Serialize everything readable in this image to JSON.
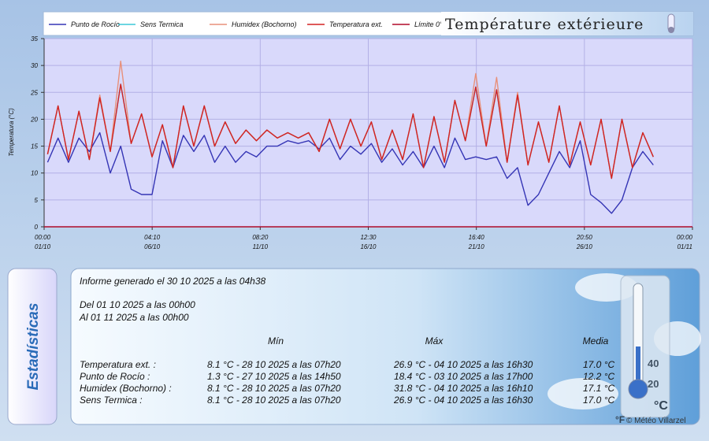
{
  "chart_data": {
    "type": "line",
    "title": "Température extérieure",
    "y_label": "Temperatura (°C)",
    "x": [
      4,
      16,
      28,
      40,
      52,
      64,
      76,
      88,
      100,
      112,
      124,
      136,
      148,
      160,
      172,
      184,
      196,
      208,
      220,
      232,
      244,
      256,
      268,
      280,
      292,
      304,
      316,
      328,
      340,
      352,
      364,
      376,
      388,
      400,
      412,
      424,
      436,
      448,
      460,
      472,
      484,
      496,
      508,
      520,
      532,
      544,
      556,
      568,
      580,
      592,
      604,
      616,
      628,
      640,
      652,
      664,
      676,
      688,
      700
    ],
    "xlim": [
      0,
      745
    ],
    "xticks": [
      {
        "value": 0,
        "label": "00:00",
        "date": "01/10"
      },
      {
        "value": 124.17,
        "label": "04:10",
        "date": "06/10"
      },
      {
        "value": 248.33,
        "label": "08:20",
        "date": "11/10"
      },
      {
        "value": 372.5,
        "label": "12:30",
        "date": "16/10"
      },
      {
        "value": 496.67,
        "label": "16:40",
        "date": "21/10"
      },
      {
        "value": 620.83,
        "label": "20:50",
        "date": "26/10"
      },
      {
        "value": 745,
        "label": "00:00",
        "date": "01/11"
      }
    ],
    "ylim": [
      0,
      35
    ],
    "yticks": [
      0,
      5,
      10,
      15,
      20,
      25,
      30,
      35
    ],
    "grid": true,
    "series": [
      {
        "name": "Punto de Rocío",
        "color": "#3535b5",
        "values": [
          12,
          16.5,
          12,
          16.5,
          14,
          17.5,
          10,
          15,
          7,
          6,
          6,
          16,
          11,
          17,
          14,
          17,
          12,
          15,
          12,
          14,
          13,
          15,
          15,
          16,
          15.5,
          16,
          14.5,
          16.5,
          12.5,
          15,
          13.5,
          15.5,
          12,
          14.5,
          11.5,
          14,
          11,
          15,
          11,
          16.5,
          12.5,
          13,
          12.5,
          13,
          9,
          11,
          4,
          6,
          10,
          14,
          11,
          16,
          6,
          4.5,
          2.5,
          5,
          11,
          14,
          11.5
        ]
      },
      {
        "name": "Sens Termica",
        "color": "#3cc8d8",
        "values": [
          13.5,
          22.5,
          12.5,
          21.5,
          12.5,
          24,
          14,
          26.5,
          15.5,
          21,
          13,
          19,
          11,
          22.5,
          15,
          22.5,
          15,
          19.5,
          15.5,
          18,
          16,
          18,
          16.5,
          17.5,
          16.5,
          17.5,
          14,
          20,
          14.5,
          20,
          15,
          19.5,
          12.5,
          18,
          12.5,
          21,
          11,
          20.5,
          12,
          23.5,
          16,
          26,
          15,
          25.5,
          12,
          24.5,
          11.5,
          19.5,
          12,
          22.5,
          11.5,
          19.5,
          11.5,
          20,
          9,
          20,
          11,
          17.5,
          13
        ]
      },
      {
        "name": "Humidex (Bochorno)",
        "color": "#e8907a",
        "values": [
          13.5,
          22.5,
          12.5,
          21.5,
          12.5,
          24.5,
          14,
          30.8,
          15.5,
          21,
          13,
          19,
          11,
          22.5,
          15,
          22.5,
          15,
          19.5,
          15.5,
          18,
          16,
          18,
          16.5,
          17.5,
          16.5,
          17.5,
          14,
          20,
          14.5,
          20,
          15,
          19.5,
          12.5,
          18,
          12.5,
          21,
          11,
          20.5,
          12,
          23.5,
          16,
          28.5,
          15,
          27.8,
          12,
          25,
          11.5,
          19.5,
          12,
          22.5,
          11.5,
          19.5,
          11.5,
          20,
          9,
          20,
          11,
          17.5,
          13
        ]
      },
      {
        "name": "Temperatura ext.",
        "color": "#d42222",
        "values": [
          13.5,
          22.5,
          12.5,
          21.5,
          12.5,
          24,
          14,
          26.5,
          15.5,
          21,
          13,
          19,
          11,
          22.5,
          15,
          22.5,
          15,
          19.5,
          15.5,
          18,
          16,
          18,
          16.5,
          17.5,
          16.5,
          17.5,
          14,
          20,
          14.5,
          20,
          15,
          19.5,
          12.5,
          18,
          12.5,
          21,
          11,
          20.5,
          12,
          23.5,
          16,
          26,
          15,
          25.5,
          12,
          24.5,
          11.5,
          19.5,
          12,
          22.5,
          11.5,
          19.5,
          11.5,
          20,
          9,
          20,
          11,
          17.5,
          13
        ]
      }
    ],
    "reference_lines": [
      {
        "name": "Límite 0°",
        "value": 0,
        "color": "#b00a2a"
      }
    ]
  },
  "stats": {
    "tab": "Estadísticas",
    "report": "Informe generado el 30 10 2025 a las 04h38",
    "from": "Del 01 10 2025 a las 00h00",
    "to": "Al 01 11 2025 a las 00h00",
    "columns": [
      "Mín",
      "Máx",
      "Media"
    ],
    "rows": [
      {
        "label": "Temperatura ext. :",
        "min": "8.1 °C - 28 10 2025 a las 07h20",
        "max": "26.9 °C - 04 10 2025 a las 16h30",
        "mean": "17.0 °C"
      },
      {
        "label": "Punto de Rocío :",
        "min": "1.3 °C - 27 10 2025 a las 14h50",
        "max": "18.4 °C - 03 10 2025 a las 17h00",
        "mean": "12.2 °C"
      },
      {
        "label": "Humidex (Bochorno) :",
        "min": "8.1 °C - 28 10 2025 a las 07h20",
        "max": "31.8 °C - 04 10 2025 a las 16h10",
        "mean": "17.1 °C"
      },
      {
        "label": "Sens Termica :",
        "min": "8.1 °C - 28 10 2025 a las 07h20",
        "max": "26.9 °C - 04 10 2025 a las 16h30",
        "mean": "17.0 °C"
      }
    ]
  },
  "thermometer": {
    "scale": [
      "40",
      "20"
    ],
    "unit": "°C",
    "alt_unit": "°F"
  },
  "credit": "© Météo Villarzel"
}
